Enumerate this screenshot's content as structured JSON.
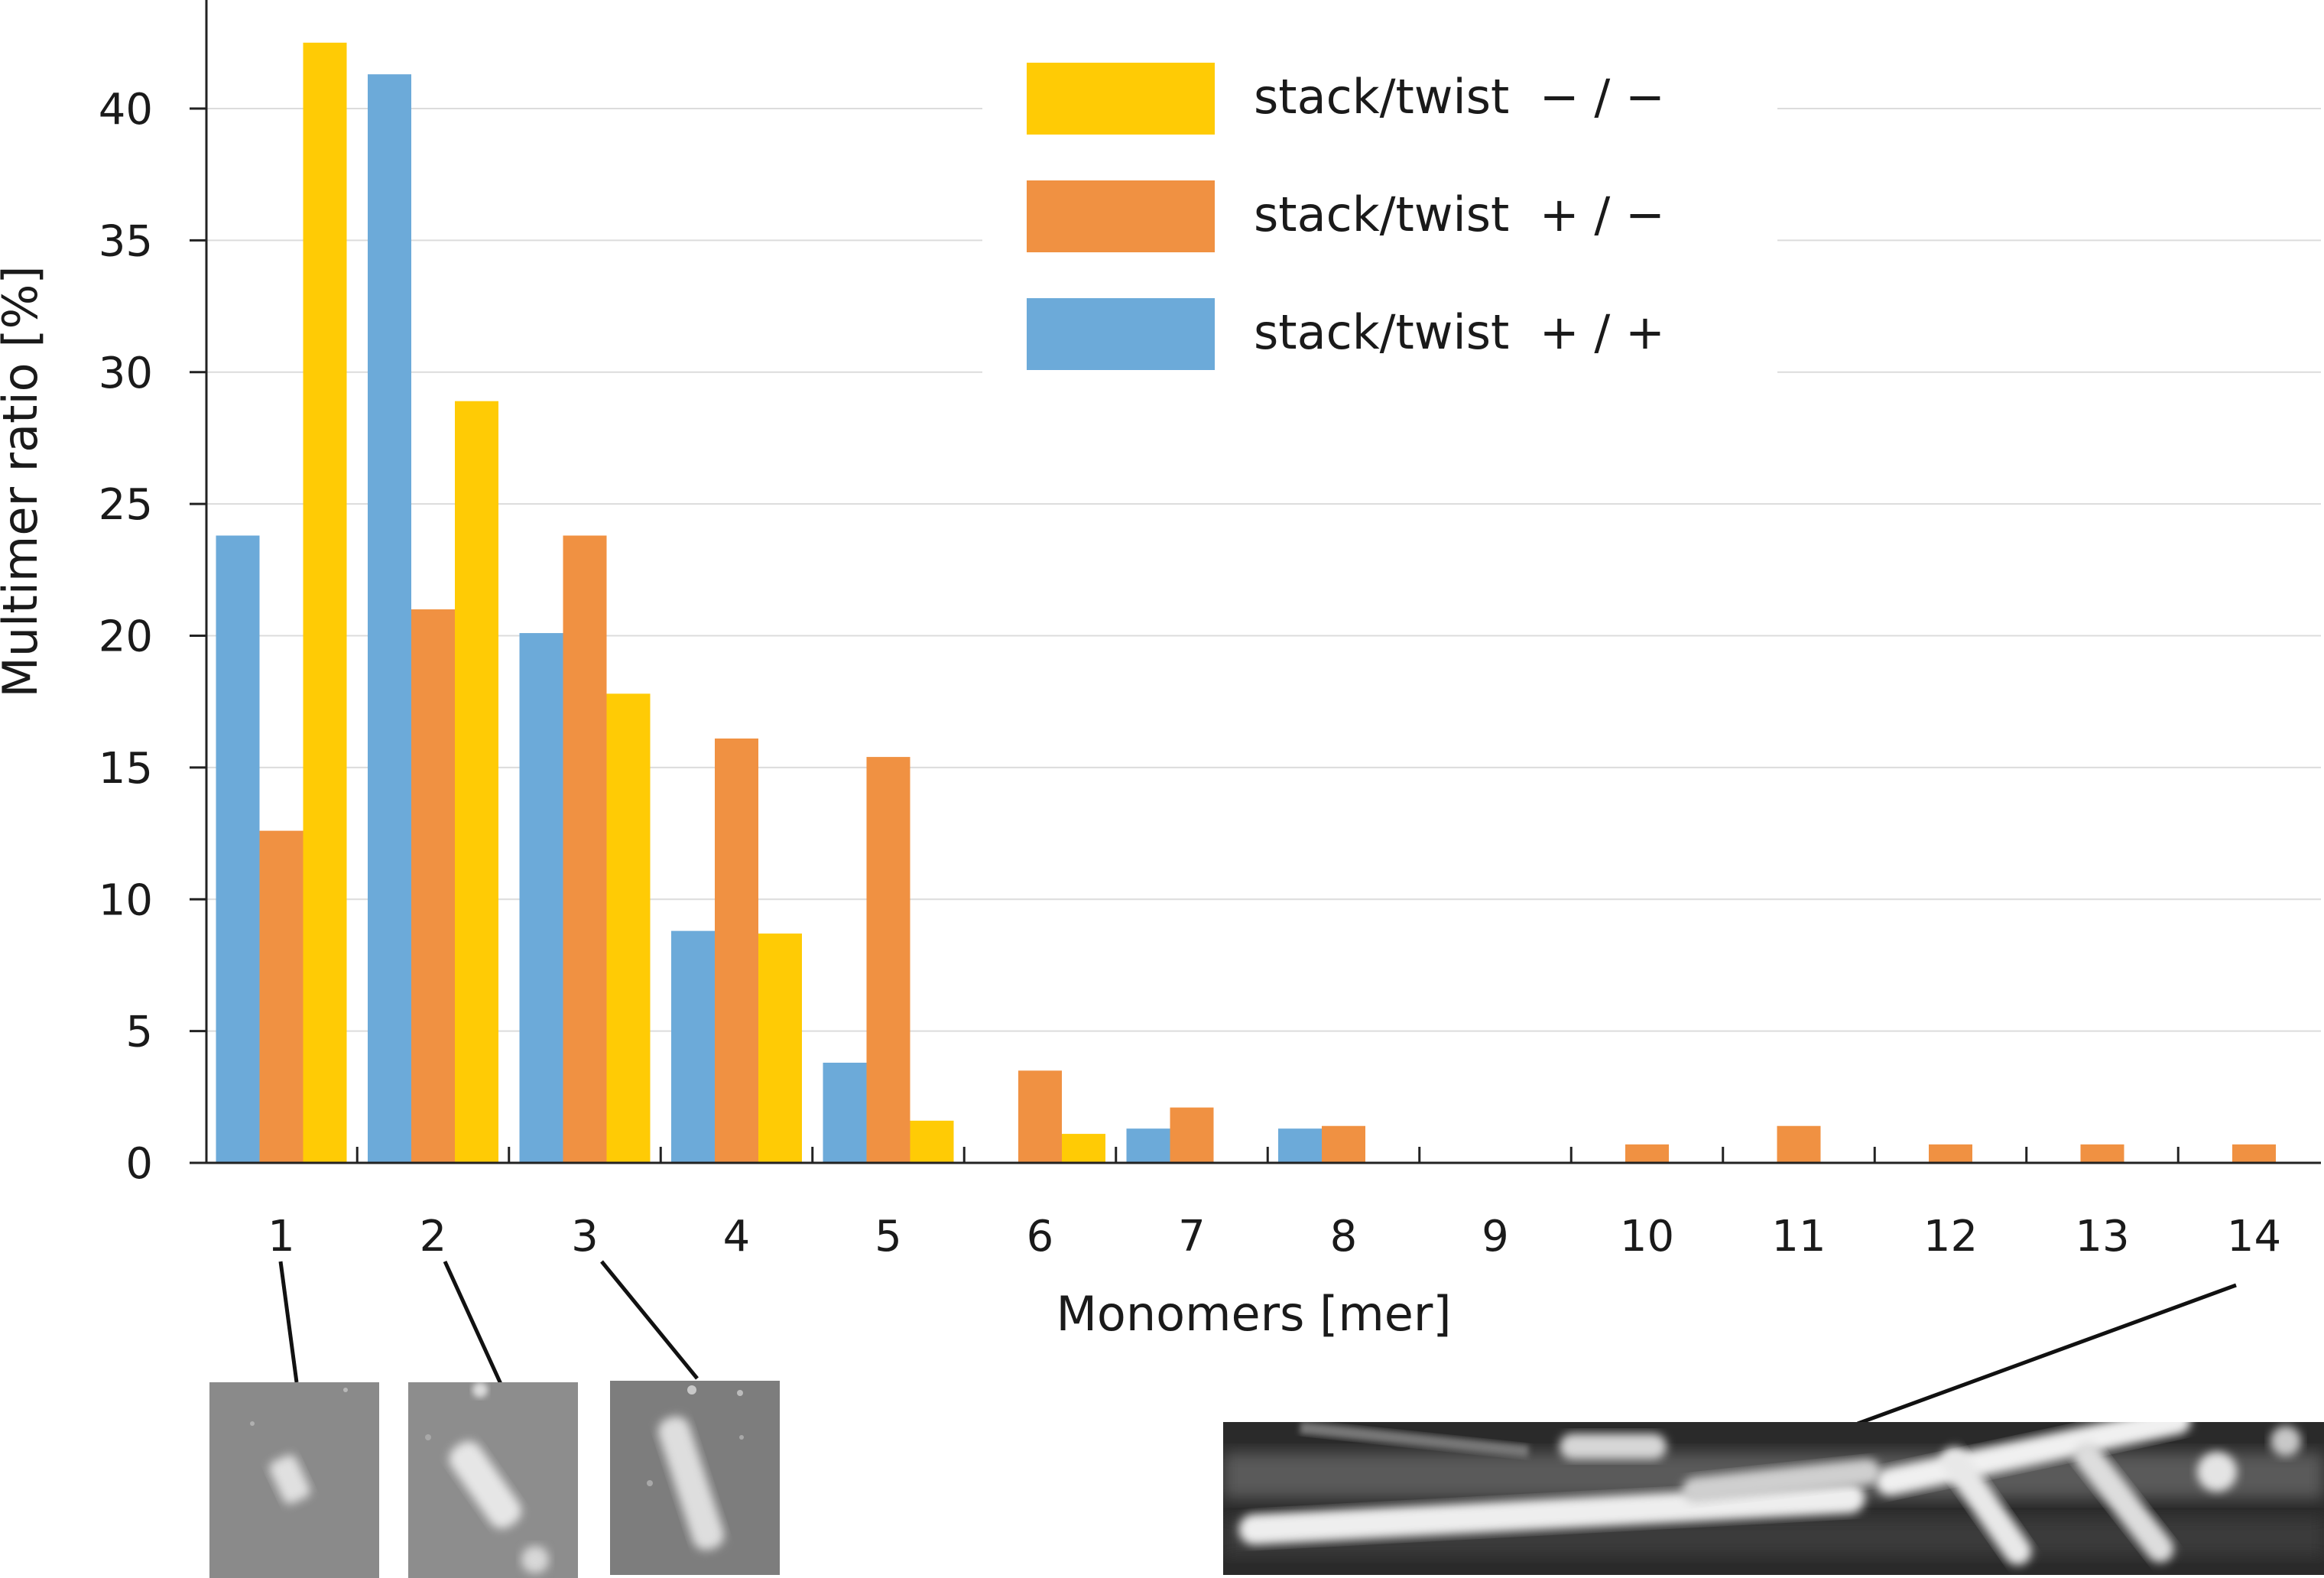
{
  "chart_data": {
    "type": "bar",
    "title": "",
    "xlabel": "Monomers [mer]",
    "ylabel": "Multimer ratio [%]",
    "ylim": [
      0,
      45
    ],
    "yticks": [
      "0",
      "5",
      "10",
      "15",
      "20",
      "25",
      "30",
      "35",
      "40"
    ],
    "categories": [
      "1",
      "2",
      "3",
      "4",
      "5",
      "6",
      "7",
      "8",
      "9",
      "10",
      "11",
      "12",
      "13",
      "14"
    ],
    "grid": "horizontal",
    "legend_position": "top-right",
    "series": [
      {
        "name": "stack/twist  + / +",
        "color": "#6CAAD9",
        "values": [
          23.8,
          41.3,
          20.1,
          8.8,
          3.8,
          0,
          1.3,
          1.3,
          0,
          0,
          0,
          0,
          0,
          0
        ]
      },
      {
        "name": "stack/twist  + / −",
        "color": "#F09142",
        "values": [
          12.6,
          21.0,
          23.8,
          16.1,
          15.4,
          3.5,
          2.1,
          1.4,
          0,
          0.7,
          1.4,
          0.7,
          0.7,
          0.7
        ]
      },
      {
        "name": "stack/twist  − / −",
        "color": "#FFCB05",
        "values": [
          42.5,
          28.9,
          17.8,
          8.7,
          1.6,
          1.1,
          0,
          0,
          0,
          0,
          0,
          0,
          0,
          0
        ]
      }
    ],
    "legend_order": [
      2,
      1,
      0
    ],
    "insets": [
      {
        "category": "1",
        "description_icon": "monomer-afm-image"
      },
      {
        "category": "2",
        "description_icon": "dimer-afm-image"
      },
      {
        "category": "3",
        "description_icon": "trimer-afm-image"
      },
      {
        "category": "14",
        "description_icon": "14-mer-afm-image"
      }
    ]
  }
}
